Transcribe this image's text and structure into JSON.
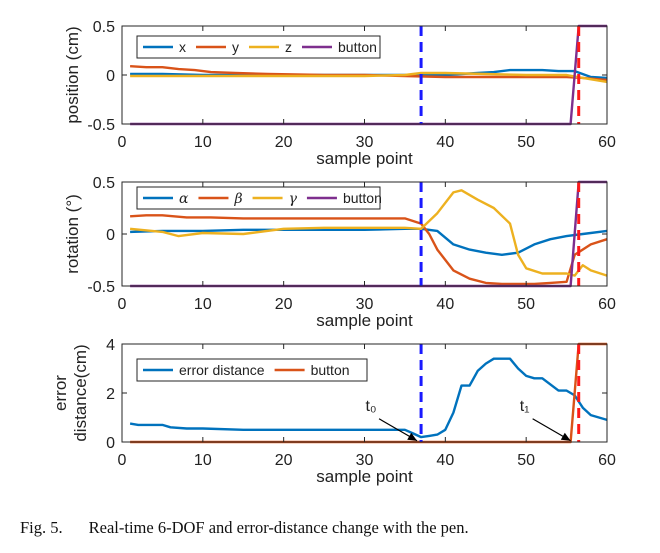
{
  "chart_data": [
    {
      "type": "line",
      "ylabel": "position (cm)",
      "xlabel": "sample point",
      "xlim": [
        0,
        60
      ],
      "ylim": [
        -0.5,
        0.5
      ],
      "xticks": [
        "0",
        "10",
        "20",
        "30",
        "40",
        "50",
        "60"
      ],
      "yticks": [
        "-0.5",
        "0",
        "0.5"
      ],
      "grid": false,
      "legend": "top-left, horizontal",
      "series": [
        {
          "name": "x",
          "color": "#0072BD",
          "x": [
            1,
            5,
            10,
            15,
            20,
            25,
            30,
            35,
            37,
            40,
            44,
            46,
            48,
            50,
            52,
            54,
            56,
            58,
            60
          ],
          "y": [
            0.01,
            0.01,
            0.0,
            0.0,
            0.0,
            0.0,
            0.0,
            0.0,
            0.0,
            0.0,
            0.02,
            0.03,
            0.05,
            0.05,
            0.05,
            0.04,
            0.04,
            -0.02,
            -0.03
          ]
        },
        {
          "name": "y",
          "color": "#D95319",
          "x": [
            1,
            3,
            5,
            7,
            9,
            11,
            14,
            18,
            25,
            30,
            35,
            40,
            45,
            50,
            55,
            57,
            60
          ],
          "y": [
            0.09,
            0.08,
            0.08,
            0.06,
            0.05,
            0.03,
            0.02,
            0.01,
            0.0,
            0.0,
            -0.01,
            -0.02,
            -0.02,
            -0.02,
            -0.02,
            -0.03,
            -0.05
          ]
        },
        {
          "name": "z",
          "color": "#EDB120",
          "x": [
            1,
            5,
            10,
            20,
            30,
            35,
            37,
            40,
            45,
            50,
            55,
            57,
            60
          ],
          "y": [
            -0.01,
            -0.01,
            -0.01,
            -0.01,
            -0.01,
            0.0,
            0.02,
            0.02,
            0.01,
            0.0,
            0.0,
            -0.03,
            -0.07
          ]
        },
        {
          "name": "button",
          "color": "#7E2F8E",
          "x": [
            1,
            55.5,
            56.5,
            60
          ],
          "y": [
            -0.5,
            -0.5,
            0.5,
            0.5
          ]
        }
      ],
      "annotations": {
        "vlines": [
          {
            "x": 37,
            "color": "#1a1aff",
            "style": "dashed"
          },
          {
            "x": 56.5,
            "color": "#ff1a1a",
            "style": "dashed"
          }
        ]
      }
    },
    {
      "type": "line",
      "ylabel": "rotation (°)",
      "xlabel": "sample point",
      "xlim": [
        0,
        60
      ],
      "ylim": [
        -0.5,
        0.5
      ],
      "xticks": [
        "0",
        "10",
        "20",
        "30",
        "40",
        "50",
        "60"
      ],
      "yticks": [
        "-0.5",
        "0",
        "0.5"
      ],
      "grid": false,
      "legend": "top-left, horizontal",
      "series": [
        {
          "name": "α",
          "color": "#0072BD",
          "x": [
            1,
            5,
            10,
            15,
            20,
            25,
            30,
            35,
            37,
            39,
            41,
            43,
            45,
            47,
            49,
            51,
            53,
            55,
            57,
            60
          ],
          "y": [
            0.02,
            0.03,
            0.03,
            0.04,
            0.04,
            0.04,
            0.04,
            0.05,
            0.05,
            0.03,
            -0.1,
            -0.15,
            -0.18,
            -0.2,
            -0.18,
            -0.1,
            -0.05,
            -0.02,
            0.0,
            0.03
          ]
        },
        {
          "name": "β",
          "color": "#D95319",
          "x": [
            1,
            3,
            5,
            8,
            11,
            15,
            20,
            25,
            30,
            33,
            35,
            37,
            38,
            39,
            41,
            43,
            45,
            47,
            49,
            51,
            53,
            55,
            56,
            58,
            60
          ],
          "y": [
            0.17,
            0.18,
            0.18,
            0.16,
            0.16,
            0.15,
            0.15,
            0.15,
            0.15,
            0.15,
            0.15,
            0.1,
            0.0,
            -0.15,
            -0.35,
            -0.43,
            -0.47,
            -0.48,
            -0.48,
            -0.48,
            -0.47,
            -0.46,
            -0.2,
            -0.1,
            -0.05
          ]
        },
        {
          "name": "γ",
          "color": "#EDB120",
          "x": [
            1,
            5,
            7,
            10,
            15,
            20,
            25,
            30,
            35,
            37,
            39,
            41,
            42,
            44,
            46,
            48,
            49,
            50,
            52,
            55,
            56,
            57,
            58,
            60
          ],
          "y": [
            0.05,
            0.02,
            -0.02,
            0.01,
            0.0,
            0.05,
            0.06,
            0.06,
            0.06,
            0.05,
            0.2,
            0.4,
            0.42,
            0.33,
            0.25,
            0.1,
            -0.2,
            -0.33,
            -0.38,
            -0.38,
            -0.4,
            -0.3,
            -0.35,
            -0.4
          ]
        },
        {
          "name": "button",
          "color": "#7E2F8E",
          "x": [
            1,
            55.5,
            56.5,
            60
          ],
          "y": [
            -0.5,
            -0.5,
            0.5,
            0.5
          ]
        }
      ],
      "annotations": {
        "vlines": [
          {
            "x": 37,
            "color": "#1a1aff",
            "style": "dashed"
          },
          {
            "x": 56.5,
            "color": "#ff1a1a",
            "style": "dashed"
          }
        ]
      }
    },
    {
      "type": "line",
      "ylabel": "error distance(cm)",
      "xlabel": "sample point",
      "xlim": [
        0,
        60
      ],
      "ylim": [
        0,
        4
      ],
      "xticks": [
        "0",
        "10",
        "20",
        "30",
        "40",
        "50",
        "60"
      ],
      "yticks": [
        "0",
        "2",
        "4"
      ],
      "grid": false,
      "legend": "top-left, horizontal",
      "series": [
        {
          "name": "error distance",
          "color": "#0072BD",
          "x": [
            1,
            2,
            3,
            5,
            6,
            8,
            10,
            15,
            20,
            25,
            30,
            33,
            35,
            36,
            37,
            38,
            39,
            40,
            41,
            42,
            43,
            44,
            45,
            46,
            47,
            48,
            49,
            50,
            51,
            52,
            54,
            55,
            56,
            57,
            58,
            59,
            60
          ],
          "y": [
            0.75,
            0.7,
            0.7,
            0.7,
            0.6,
            0.55,
            0.55,
            0.5,
            0.5,
            0.5,
            0.5,
            0.5,
            0.5,
            0.35,
            0.2,
            0.25,
            0.3,
            0.5,
            1.2,
            2.3,
            2.3,
            2.9,
            3.2,
            3.4,
            3.4,
            3.4,
            3.0,
            2.7,
            2.6,
            2.6,
            2.1,
            2.1,
            1.9,
            1.4,
            1.1,
            1.0,
            0.9
          ]
        },
        {
          "name": "button",
          "color": "#D95319",
          "x": [
            1,
            55.5,
            56.5,
            60
          ],
          "y": [
            0,
            0,
            4,
            4
          ]
        }
      ],
      "annotations": {
        "vlines": [
          {
            "x": 37,
            "color": "#1a1aff",
            "style": "dashed"
          },
          {
            "x": 56.5,
            "color": "#ff1a1a",
            "style": "dashed"
          }
        ],
        "arrows": [
          {
            "label": "t₀",
            "target_x": 36.5,
            "target_y": 0.05
          },
          {
            "label": "t₁",
            "target_x": 55.5,
            "target_y": 0.05
          }
        ]
      }
    }
  ],
  "caption": {
    "label": "Fig. 5.",
    "text": "Real-time 6-DOF and error-distance change with the pen."
  }
}
